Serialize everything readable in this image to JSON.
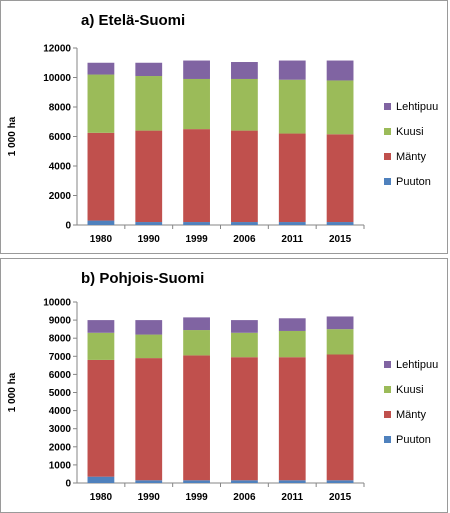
{
  "chart_data": [
    {
      "type": "bar",
      "stacked": true,
      "title": "a) Etelä-Suomi",
      "ylabel": "1 000 ha",
      "xlabel": "",
      "ylim": [
        0,
        12000
      ],
      "yticks": [
        "0",
        "2000",
        "4000",
        "6000",
        "8000",
        "10000",
        "12000"
      ],
      "grid": false,
      "legend_position": "right",
      "categories": [
        "1980",
        "1990",
        "1999",
        "2006",
        "2011",
        "2015"
      ],
      "series": [
        {
          "name": "Puuton",
          "color": "#4f81bd",
          "values": [
            300,
            200,
            200,
            200,
            200,
            200
          ]
        },
        {
          "name": "Mänty",
          "color": "#c0504d",
          "values": [
            5950,
            6200,
            6300,
            6200,
            6000,
            5950
          ]
        },
        {
          "name": "Kuusi",
          "color": "#9bbb59",
          "values": [
            3950,
            3700,
            3400,
            3500,
            3650,
            3650
          ]
        },
        {
          "name": "Lehtipuu",
          "color": "#8064a2",
          "values": [
            800,
            900,
            1250,
            1150,
            1300,
            1350
          ]
        }
      ]
    },
    {
      "type": "bar",
      "stacked": true,
      "title": "b) Pohjois-Suomi",
      "ylabel": "1 000 ha",
      "xlabel": "",
      "ylim": [
        0,
        10000
      ],
      "yticks": [
        "0",
        "1000",
        "2000",
        "3000",
        "4000",
        "5000",
        "6000",
        "7000",
        "8000",
        "9000",
        "10000"
      ],
      "grid": false,
      "legend_position": "right",
      "categories": [
        "1980",
        "1990",
        "1999",
        "2006",
        "2011",
        "2015"
      ],
      "series": [
        {
          "name": "Puuton",
          "color": "#4f81bd",
          "values": [
            350,
            150,
            150,
            150,
            150,
            150
          ]
        },
        {
          "name": "Mänty",
          "color": "#c0504d",
          "values": [
            6450,
            6750,
            6900,
            6800,
            6800,
            6950
          ]
        },
        {
          "name": "Kuusi",
          "color": "#9bbb59",
          "values": [
            1500,
            1300,
            1400,
            1350,
            1450,
            1400
          ]
        },
        {
          "name": "Lehtipuu",
          "color": "#8064a2",
          "values": [
            700,
            800,
            700,
            700,
            700,
            700
          ]
        }
      ]
    }
  ]
}
